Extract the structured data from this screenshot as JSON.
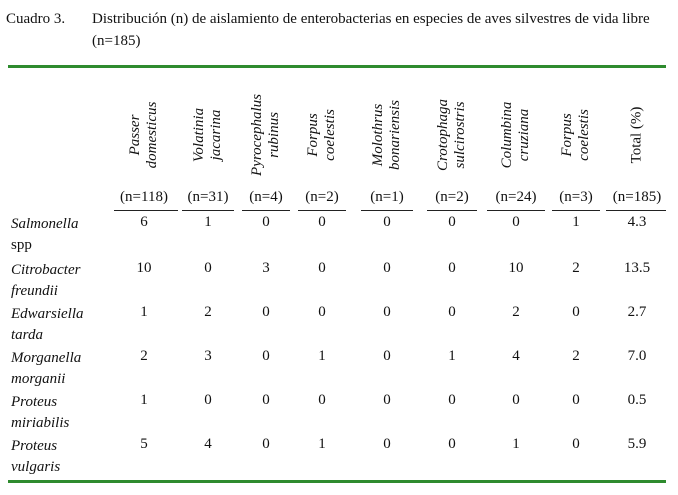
{
  "caption": {
    "label": "Cuadro 3.",
    "text": "Distribución (n) de aislamiento de enterobacterias en especies de aves silvestres de vida libre (n=185)"
  },
  "columns": [
    {
      "line1": "Passer",
      "line2": "domesticus",
      "n": "(n=118)"
    },
    {
      "line1": "Volatinia",
      "line2": "jacarina",
      "n": "(n=31)"
    },
    {
      "line1": "Pyrocephalus",
      "line2": "rubinus",
      "n": "(n=4)"
    },
    {
      "line1": "Forpus",
      "line2": "coelestis",
      "n": "(n=2)"
    },
    {
      "line1": "Molothrus",
      "line2": "bonariensis",
      "n": "(n=1)"
    },
    {
      "line1": "Crotophaga",
      "line2": "sulcirostris",
      "n": "(n=2)"
    },
    {
      "line1": "Columbina",
      "line2": "cruziana",
      "n": "(n=24)"
    },
    {
      "line1": "Forpus",
      "line2": "coelestis",
      "n": "(n=3)"
    },
    {
      "line1": "Total (%)",
      "line2": "",
      "n": "(n=185)"
    }
  ],
  "rows": [
    {
      "line1": "Salmonella",
      "line2": "spp",
      "values": [
        "6",
        "1",
        "0",
        "0",
        "0",
        "0",
        "0",
        "1",
        "4.3"
      ]
    },
    {
      "line1": "Citrobacter",
      "line2": "freundii",
      "values": [
        "10",
        "0",
        "3",
        "0",
        "0",
        "0",
        "10",
        "2",
        "13.5"
      ]
    },
    {
      "line1": "Edwarsiella",
      "line2": "tarda",
      "values": [
        "1",
        "2",
        "0",
        "0",
        "0",
        "0",
        "2",
        "0",
        "2.7"
      ]
    },
    {
      "line1": "Morganella",
      "line2": "morganii",
      "values": [
        "2",
        "3",
        "0",
        "1",
        "0",
        "1",
        "4",
        "2",
        "7.0"
      ]
    },
    {
      "line1": "Proteus",
      "line2": "miriabilis",
      "values": [
        "1",
        "0",
        "0",
        "0",
        "0",
        "0",
        "0",
        "0",
        "0.5"
      ]
    },
    {
      "line1": "Proteus",
      "line2": "vulgaris",
      "values": [
        "5",
        "4",
        "0",
        "1",
        "0",
        "0",
        "1",
        "0",
        "5.9"
      ]
    }
  ]
}
